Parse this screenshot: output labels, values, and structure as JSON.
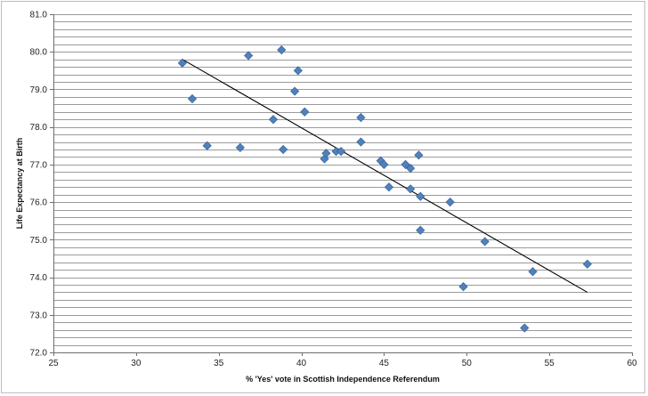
{
  "chart_data": {
    "type": "scatter",
    "xlabel": "% 'Yes' vote in Scottish Independence Referendum",
    "ylabel": "Life Expectancy at Birth",
    "xlim": [
      25,
      60
    ],
    "ylim": [
      72.0,
      81.0
    ],
    "x_ticks": [
      "25",
      "30",
      "35",
      "40",
      "45",
      "50",
      "55",
      "60"
    ],
    "y_ticks": [
      "72.0",
      "73.0",
      "74.0",
      "75.0",
      "76.0",
      "77.0",
      "78.0",
      "79.0",
      "80.0",
      "81.0"
    ],
    "grid": "horizontal, every 0.2",
    "legend": "none",
    "marker_color": "#4f81bd",
    "trendline_color": "#000000",
    "series": [
      {
        "points": [
          {
            "x": 32.8,
            "y": 79.7
          },
          {
            "x": 33.4,
            "y": 78.75
          },
          {
            "x": 34.3,
            "y": 77.5
          },
          {
            "x": 36.3,
            "y": 77.45
          },
          {
            "x": 36.8,
            "y": 79.9
          },
          {
            "x": 38.3,
            "y": 78.2
          },
          {
            "x": 38.8,
            "y": 80.05
          },
          {
            "x": 38.9,
            "y": 77.4
          },
          {
            "x": 39.6,
            "y": 78.95
          },
          {
            "x": 39.8,
            "y": 79.5
          },
          {
            "x": 40.2,
            "y": 78.4
          },
          {
            "x": 41.4,
            "y": 77.15
          },
          {
            "x": 41.5,
            "y": 77.3
          },
          {
            "x": 42.1,
            "y": 77.35
          },
          {
            "x": 42.4,
            "y": 77.35
          },
          {
            "x": 43.6,
            "y": 78.25
          },
          {
            "x": 43.6,
            "y": 77.6
          },
          {
            "x": 44.8,
            "y": 77.1
          },
          {
            "x": 45.0,
            "y": 77.0
          },
          {
            "x": 45.3,
            "y": 76.4
          },
          {
            "x": 46.3,
            "y": 77.0
          },
          {
            "x": 46.6,
            "y": 76.9
          },
          {
            "x": 46.6,
            "y": 76.35
          },
          {
            "x": 47.1,
            "y": 77.25
          },
          {
            "x": 47.2,
            "y": 76.15
          },
          {
            "x": 47.2,
            "y": 75.25
          },
          {
            "x": 49.0,
            "y": 76.0
          },
          {
            "x": 49.8,
            "y": 73.75
          },
          {
            "x": 51.1,
            "y": 74.95
          },
          {
            "x": 53.5,
            "y": 72.65
          },
          {
            "x": 54.0,
            "y": 74.15
          },
          {
            "x": 57.3,
            "y": 74.35
          }
        ]
      }
    ],
    "trendline": {
      "type": "linear",
      "x": [
        32.8,
        57.3
      ],
      "y": [
        79.8,
        73.6
      ]
    }
  }
}
